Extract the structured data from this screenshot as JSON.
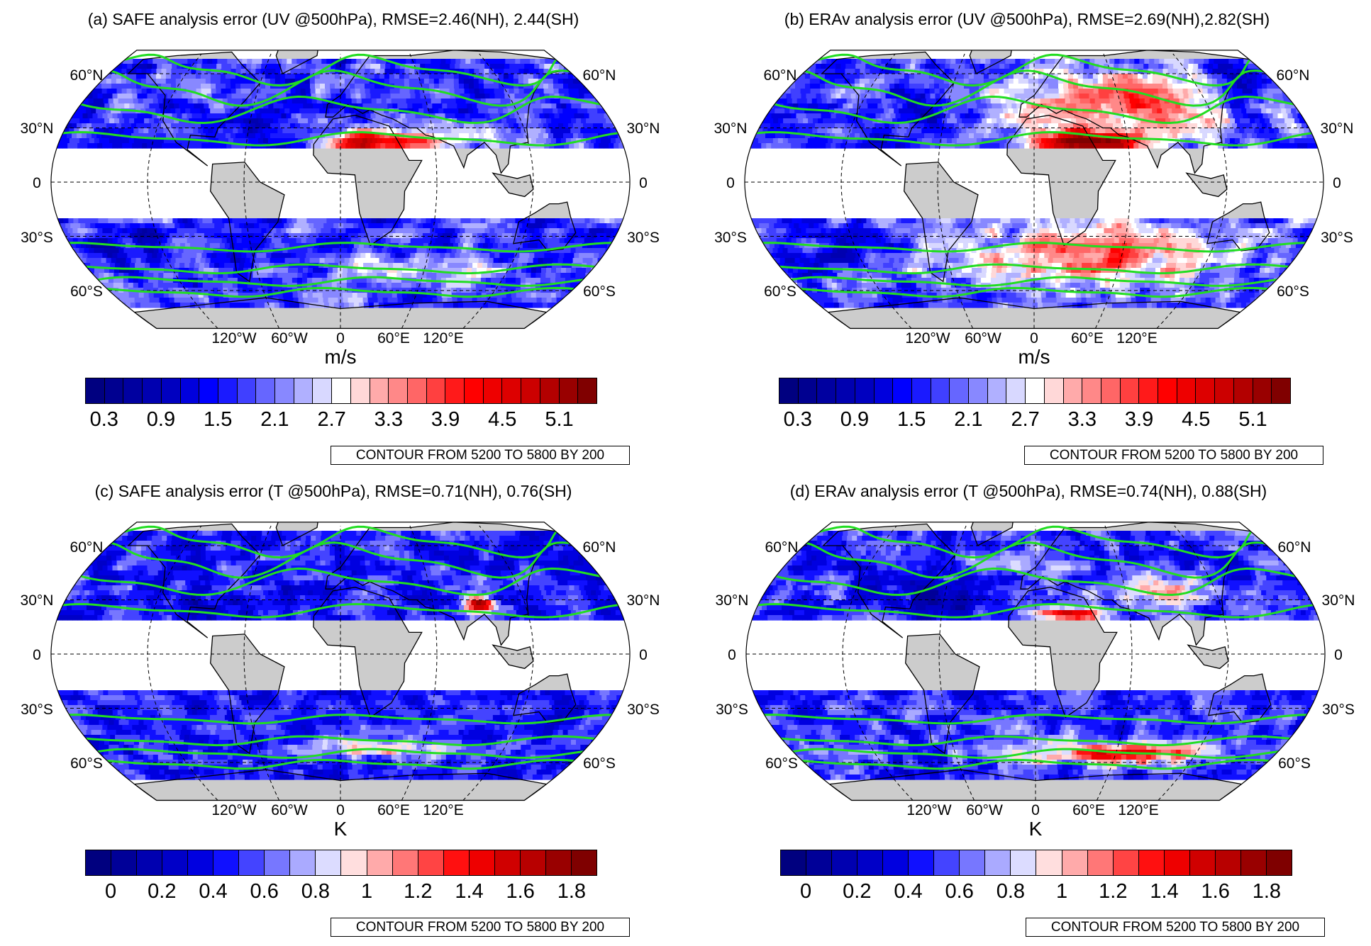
{
  "panels": [
    {
      "id": "a",
      "title": "(a) SAFE analysis error (UV @500hPa), RMSE=2.46(NH), 2.44(SH)",
      "unit": "m/s",
      "colorbar": {
        "variable": "UV",
        "start": 0.3,
        "step": 0.2,
        "n_colors": 27,
        "labels": [
          "0.3",
          "0.9",
          "1.5",
          "2.1",
          "2.7",
          "3.3",
          "3.9",
          "4.5",
          "5.1"
        ],
        "label_every": 3
      },
      "contour_note": "CONTOUR FROM 5200 TO 5800 BY 200"
    },
    {
      "id": "b",
      "title": "(b) ERAv analysis error (UV @500hPa), RMSE=2.69(NH),2.82(SH)",
      "unit": "m/s",
      "colorbar": {
        "variable": "UV",
        "start": 0.3,
        "step": 0.2,
        "n_colors": 27,
        "labels": [
          "0.3",
          "0.9",
          "1.5",
          "2.1",
          "2.7",
          "3.3",
          "3.9",
          "4.5",
          "5.1"
        ],
        "label_every": 3
      },
      "contour_note": "CONTOUR FROM 5200 TO 5800 BY 200"
    },
    {
      "id": "c",
      "title": "(c) SAFE analysis error (T @500hPa), RMSE=0.71(NH), 0.76(SH)",
      "unit": "K",
      "colorbar": {
        "variable": "T",
        "start": 0,
        "step": 0.1,
        "n_colors": 20,
        "labels": [
          "0",
          "0.2",
          "0.4",
          "0.6",
          "0.8",
          "1",
          "1.2",
          "1.4",
          "1.6",
          "1.8"
        ],
        "label_every": 2
      },
      "contour_note": "CONTOUR FROM 5200 TO 5800 BY 200"
    },
    {
      "id": "d",
      "title": "(d) ERAv analysis error (T @500hPa), RMSE=0.74(NH), 0.88(SH)",
      "unit": "K",
      "colorbar": {
        "variable": "T",
        "start": 0,
        "step": 0.1,
        "n_colors": 20,
        "labels": [
          "0",
          "0.2",
          "0.4",
          "0.6",
          "0.8",
          "1",
          "1.2",
          "1.4",
          "1.6",
          "1.8"
        ],
        "label_every": 2
      },
      "contour_note": "CONTOUR FROM 5200 TO 5800 BY 200"
    }
  ],
  "map_labels": {
    "lat": [
      "60°N",
      "30°N",
      "0",
      "30°S",
      "60°S"
    ],
    "lon": [
      "120°W",
      "60°W",
      "0",
      "60°E",
      "120°E"
    ]
  },
  "colors": {
    "uv_scale": [
      "#000080",
      "#000090",
      "#0000a0",
      "#0000b0",
      "#0000c0",
      "#0000dd",
      "#0000ff",
      "#1a1aff",
      "#4040ff",
      "#6666ff",
      "#8888ff",
      "#b0b0ff",
      "#d8d8ff",
      "#ffffff",
      "#ffd8d8",
      "#ffaaaa",
      "#ff8888",
      "#ff6666",
      "#ff4040",
      "#ff1a1a",
      "#ff0000",
      "#ee0000",
      "#dd0000",
      "#cc0000",
      "#b30000",
      "#990000",
      "#800000"
    ],
    "t_scale": [
      "#00007f",
      "#000098",
      "#0000b0",
      "#0000c8",
      "#0000e0",
      "#1010ff",
      "#4444ff",
      "#7777ff",
      "#aaaaff",
      "#dcdcff",
      "#ffdede",
      "#ffaaaa",
      "#ff7777",
      "#ff4444",
      "#ff1010",
      "#ee0000",
      "#d00000",
      "#b80000",
      "#990000",
      "#7f0000"
    ],
    "land": "#cccccc",
    "contour": "#22dd22"
  }
}
